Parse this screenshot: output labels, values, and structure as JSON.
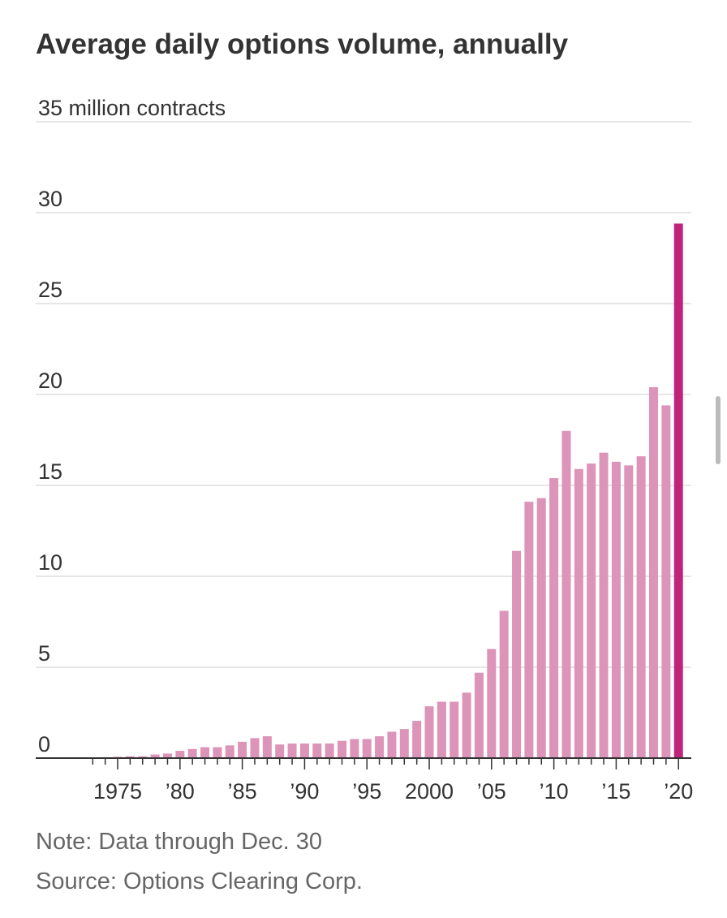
{
  "chart_data": {
    "type": "bar",
    "title": "Average daily options volume, annually",
    "categories": [
      null,
      null,
      "1975",
      null,
      null,
      null,
      null,
      "’80",
      null,
      null,
      null,
      null,
      "’85",
      null,
      null,
      null,
      null,
      "’90",
      null,
      null,
      null,
      null,
      "’95",
      null,
      null,
      null,
      null,
      "2000",
      null,
      null,
      null,
      null,
      "’05",
      null,
      null,
      null,
      null,
      "’10",
      null,
      null,
      null,
      null,
      "’15",
      null,
      null,
      null,
      null,
      "’20"
    ],
    "values": [
      0,
      0.05,
      0.07,
      0.1,
      0.1,
      0.2,
      0.25,
      0.4,
      0.5,
      0.6,
      0.6,
      0.7,
      0.9,
      1.1,
      1.2,
      0.75,
      0.8,
      0.8,
      0.8,
      0.8,
      0.95,
      1.05,
      1.05,
      1.2,
      1.45,
      1.6,
      2.05,
      2.85,
      3.1,
      3.1,
      3.6,
      4.7,
      6.0,
      8.1,
      11.4,
      14.1,
      14.3,
      15.4,
      18.0,
      15.9,
      16.2,
      16.8,
      16.3,
      16.1,
      16.6,
      20.4,
      19.4,
      29.4
    ],
    "colors": [
      "#dc94b8",
      "#dc94b8",
      "#dc94b8",
      "#dc94b8",
      "#dc94b8",
      "#dc94b8",
      "#dc94b8",
      "#dc94b8",
      "#dc94b8",
      "#dc94b8",
      "#dc94b8",
      "#dc94b8",
      "#dc94b8",
      "#dc94b8",
      "#dc94b8",
      "#dc94b8",
      "#dc94b8",
      "#dc94b8",
      "#dc94b8",
      "#dc94b8",
      "#dc94b8",
      "#dc94b8",
      "#dc94b8",
      "#dc94b8",
      "#dc94b8",
      "#dc94b8",
      "#dc94b8",
      "#dc94b8",
      "#dc94b8",
      "#dc94b8",
      "#dc94b8",
      "#dc94b8",
      "#dc94b8",
      "#dc94b8",
      "#dc94b8",
      "#dc94b8",
      "#dc94b8",
      "#dc94b8",
      "#dc94b8",
      "#dc94b8",
      "#dc94b8",
      "#dc94b8",
      "#dc94b8",
      "#dc94b8",
      "#dc94b8",
      "#dc94b8",
      "#dc94b8",
      "#c0247a"
    ],
    "ylim": [
      0,
      35
    ],
    "yticks": [
      0,
      5,
      10,
      15,
      20,
      25,
      30,
      {
        "value": 35,
        "label": "35 million contracts"
      }
    ],
    "grid": true,
    "notes": [
      "Note: Data through Dec. 30",
      "Source: Options Clearing Corp."
    ]
  }
}
